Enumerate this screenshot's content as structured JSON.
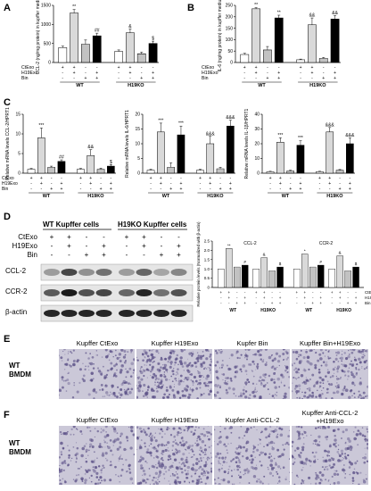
{
  "panels": {
    "A": "A",
    "B": "B",
    "C": "C",
    "D": "D",
    "E": "E",
    "F": "F"
  },
  "legend_rows": [
    "CtExo",
    "H19Exo",
    "Bin"
  ],
  "legend_rows_d": [
    "CtExo",
    "H19Exo",
    "Bin"
  ],
  "signs": {
    "plus": "+",
    "minus": "-"
  },
  "groups": {
    "wt": "WT",
    "ko": "H19KO"
  },
  "chart_data": [
    {
      "id": "A",
      "type": "bar",
      "ylabel": "CCL-2 (ng/mg protein) in kupffer medium",
      "ylim": [
        0,
        1500
      ],
      "yticks": [
        "0",
        "500",
        "1000",
        "1500"
      ],
      "groups": [
        "WT",
        "H19KO"
      ],
      "categories": [
        "CtExo",
        "CtExo+H19Exo",
        "Bin",
        "Bin+H19Exo"
      ],
      "values_wt": [
        390,
        1300,
        480,
        700
      ],
      "values_ko": [
        290,
        780,
        230,
        500
      ],
      "errors_wt": [
        40,
        90,
        110,
        70
      ],
      "errors_ko": [
        40,
        100,
        40,
        60
      ],
      "marks_wt": [
        "",
        "**",
        "",
        "##"
      ],
      "marks_ko": [
        "",
        "&",
        "",
        "$"
      ]
    },
    {
      "id": "B",
      "type": "bar",
      "ylabel": "IL-6 (ng/mg protein) in kupffer medium",
      "ylim": [
        0,
        250
      ],
      "yticks": [
        "0",
        "50",
        "100",
        "150",
        "200",
        "250"
      ],
      "groups": [
        "WT",
        "H19KO"
      ],
      "categories": [
        "CtExo",
        "CtExo+H19Exo",
        "Bin",
        "Bin+H19Exo"
      ],
      "values_wt": [
        35,
        235,
        55,
        195
      ],
      "values_ko": [
        12,
        165,
        18,
        190
      ],
      "errors_wt": [
        5,
        5,
        15,
        12
      ],
      "errors_ko": [
        3,
        30,
        4,
        15
      ],
      "marks_wt": [
        "",
        "**",
        "",
        "**"
      ],
      "marks_ko": [
        "",
        "&&",
        "",
        "&&"
      ]
    },
    {
      "id": "C1",
      "type": "bar",
      "ylabel": "Relative mRNA levels CCL-2/HPRT1",
      "ylim": [
        0,
        15
      ],
      "yticks": [
        "0",
        "5",
        "10",
        "15"
      ],
      "groups": [
        "WT",
        "H19KO"
      ],
      "categories": [
        "CtExo",
        "CtExo+H19Exo",
        "Bin",
        "Bin+H19Exo"
      ],
      "values_wt": [
        1,
        9,
        1.5,
        3
      ],
      "values_ko": [
        1,
        4.5,
        1,
        1.8
      ],
      "errors_wt": [
        0.2,
        2.5,
        0.3,
        0.4
      ],
      "errors_ko": [
        0.2,
        1.5,
        0.3,
        0.4
      ],
      "marks_wt": [
        "",
        "***",
        "",
        "##"
      ],
      "marks_ko": [
        "",
        "&&",
        "",
        "$"
      ]
    },
    {
      "id": "C2",
      "type": "bar",
      "ylabel": "Relative mRNA levels IL-6/HPRT1",
      "ylim": [
        0,
        20
      ],
      "yticks": [
        "0",
        "5",
        "10",
        "15",
        "20"
      ],
      "groups": [
        "WT",
        "H19KO"
      ],
      "categories": [
        "CtExo",
        "CtExo+H19Exo",
        "Bin",
        "Bin+H19Exo"
      ],
      "values_wt": [
        1,
        14,
        2,
        13
      ],
      "values_ko": [
        1,
        10,
        1.5,
        16
      ],
      "errors_wt": [
        0.3,
        3,
        1.5,
        3
      ],
      "errors_ko": [
        0.3,
        2.5,
        0.5,
        2
      ],
      "marks_wt": [
        "",
        "***",
        "",
        "***"
      ],
      "marks_ko": [
        "",
        "&&&",
        "",
        "&&&"
      ]
    },
    {
      "id": "C3",
      "type": "bar",
      "ylabel": "Relative mRNA levels IL-1β/HPRT1",
      "ylim": [
        0,
        40
      ],
      "yticks": [
        "0",
        "10",
        "20",
        "30",
        "40"
      ],
      "groups": [
        "WT",
        "H19KO"
      ],
      "categories": [
        "CtExo",
        "CtExo+H19Exo",
        "Bin",
        "Bin+H19Exo"
      ],
      "values_wt": [
        1,
        21,
        1.5,
        19
      ],
      "values_ko": [
        1,
        28,
        2,
        20
      ],
      "errors_wt": [
        0.3,
        3,
        0.5,
        3
      ],
      "errors_ko": [
        0.3,
        3,
        0.5,
        4
      ],
      "marks_wt": [
        "",
        "***",
        "",
        "***"
      ],
      "marks_ko": [
        "",
        "&&&",
        "",
        "&&&"
      ]
    },
    {
      "id": "D",
      "type": "bar",
      "ylabel": "Relative protein levels (Normalized with β-actin)",
      "ylim": [
        0,
        2.5
      ],
      "yticks": [
        "0",
        "0.5",
        "1.0",
        "1.5",
        "2.0",
        "2.5"
      ],
      "groups": [
        "WT",
        "H19KO"
      ],
      "subpanels": [
        "CCL-2",
        "CCR-2"
      ],
      "categories": [
        "CtExo",
        "CtExo+H19Exo",
        "Bin",
        "Bin+H19Exo"
      ],
      "ccl2_wt": [
        1,
        2.1,
        1.1,
        1.2
      ],
      "ccl2_ko": [
        1,
        1.6,
        0.9,
        1.1
      ],
      "ccr2_wt": [
        1,
        1.8,
        1.1,
        1.2
      ],
      "ccr2_ko": [
        1,
        1.7,
        0.9,
        1.1
      ],
      "marks_ccl2_wt": [
        "",
        "**",
        "",
        "#"
      ],
      "marks_ccl2_ko": [
        "",
        "&",
        "",
        "$"
      ],
      "marks_ccr2_wt": [
        "",
        "*",
        "",
        "#"
      ],
      "marks_ccr2_ko": [
        "",
        "&",
        "",
        "$"
      ]
    }
  ],
  "blot": {
    "header_wt": "WT Kupffer cells",
    "header_ko": "H19KO Kupffer cells",
    "bands": [
      "CCL-2",
      "CCR-2",
      "β-actin"
    ]
  },
  "panel_e": {
    "titles": [
      "Kupffer CtExo",
      "Kupffer H19Exo",
      "Kupfer Bin",
      "Kupffer Bin+H19Exo"
    ],
    "row_label": [
      "WT",
      "BMDM"
    ]
  },
  "panel_f": {
    "titles": [
      "Kupffer CtExo",
      "Kupffer H19Exo",
      "Kupfer Anti-CCL-2"
    ],
    "title4": [
      "Kupffer Anti-CCL-2",
      "+H19Exo"
    ],
    "row_label": [
      "WT",
      "BMDM"
    ]
  },
  "colors": {
    "white": "#ffffff",
    "lightgray": "#d9d9d9",
    "hatch": "#9a9a9a",
    "black": "#000000",
    "micro_bg": "#cbc8d8",
    "micro_dot": "#5a4f86"
  }
}
